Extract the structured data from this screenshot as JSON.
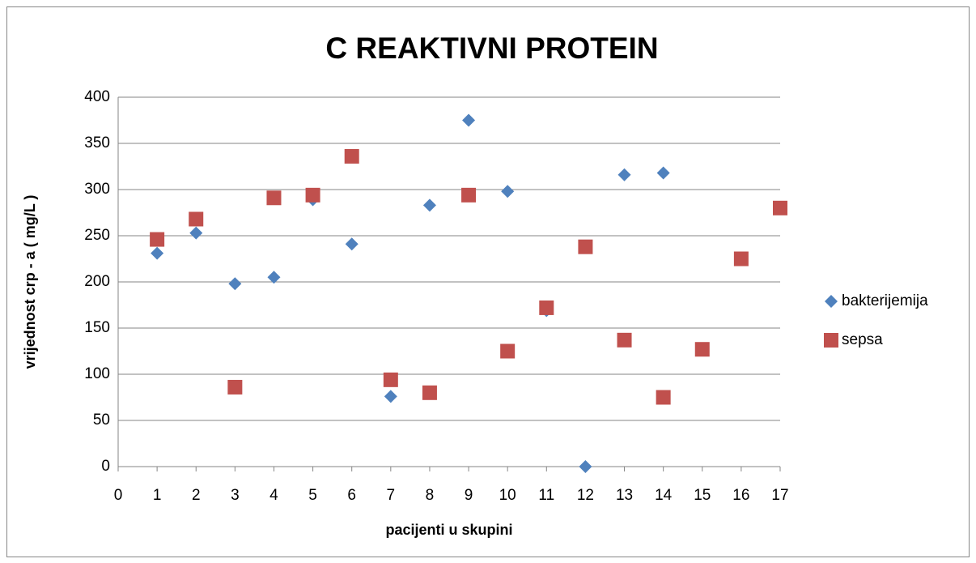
{
  "chart_data": {
    "type": "scatter",
    "title": "C REAKTIVNI PROTEIN",
    "x_label": "pacijenti u skupini",
    "y_label": "vrijednost crp - a ( mg/L )",
    "series": [
      {
        "name": "bakterijemija",
        "color": "#4f81bd",
        "marker": "diamond",
        "x": [
          1,
          2,
          3,
          4,
          5,
          6,
          7,
          8,
          9,
          10,
          11,
          12,
          13,
          14
        ],
        "values": [
          231,
          253,
          198,
          205,
          289,
          241,
          76,
          283,
          375,
          298,
          169,
          0,
          316,
          318
        ]
      },
      {
        "name": "sepsa",
        "color": "#c0504d",
        "marker": "square",
        "x": [
          1,
          2,
          3,
          4,
          5,
          6,
          7,
          8,
          9,
          10,
          11,
          12,
          13,
          14,
          15,
          16,
          17
        ],
        "values": [
          246,
          268,
          86,
          291,
          294,
          336,
          94,
          80,
          294,
          125,
          172,
          238,
          137,
          75,
          127,
          225,
          280
        ]
      }
    ],
    "xlim": [
      0,
      17
    ],
    "xticks": [
      0,
      1,
      2,
      3,
      4,
      5,
      6,
      7,
      8,
      9,
      10,
      11,
      12,
      13,
      14,
      15,
      16,
      17
    ],
    "ylim": [
      0,
      400
    ],
    "yticks": [
      0,
      50,
      100,
      150,
      200,
      250,
      300,
      350,
      400
    ],
    "grid": true,
    "legend": "right"
  }
}
